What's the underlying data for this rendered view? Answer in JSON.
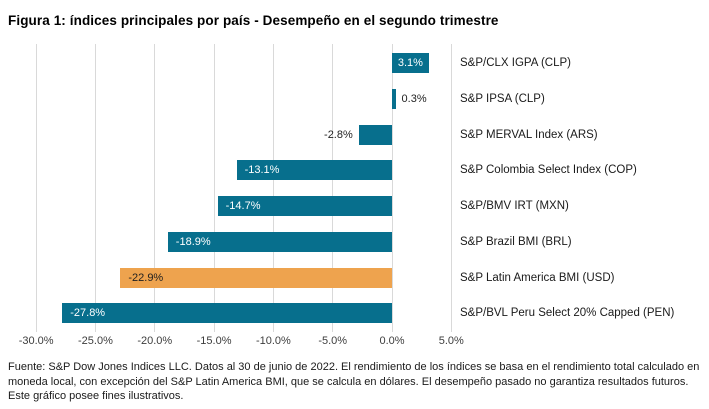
{
  "title": "Figura 1: índices principales por país - Desempeño en el segundo trimestre",
  "chart_data": {
    "type": "bar",
    "orientation": "horizontal",
    "title": "Figura 1: índices principales por país - Desempeño en el segundo trimestre",
    "categories": [
      "S&P/CLX IGPA (CLP)",
      "S&P IPSA (CLP)",
      "S&P MERVAL Index (ARS)",
      "S&P Colombia Select Index (COP)",
      "S&P/BMV IRT (MXN)",
      "S&P Brazil BMI (BRL)",
      "S&P Latin America BMI (USD)",
      "S&P/BVL Peru Select 20% Capped (PEN)"
    ],
    "values": [
      3.1,
      0.3,
      -2.8,
      -13.1,
      -14.7,
      -18.9,
      -22.9,
      -27.8
    ],
    "value_labels": [
      "3.1%",
      "0.3%",
      "-2.8%",
      "-13.1%",
      "-14.7%",
      "-18.9%",
      "-22.9%",
      "-27.8%"
    ],
    "bar_colors": [
      "teal",
      "teal",
      "teal",
      "teal",
      "teal",
      "teal",
      "orange",
      "teal"
    ],
    "value_label_inside": [
      true,
      false,
      false,
      true,
      true,
      true,
      true,
      true
    ],
    "x_tick_labels": [
      "-30.0%",
      "-25.0%",
      "-20.0%",
      "-15.0%",
      "-10.0%",
      "-5.0%",
      "0.0%",
      "5.0%"
    ],
    "x_tick_values": [
      -30,
      -25,
      -20,
      -15,
      -10,
      -5,
      0,
      5
    ],
    "xlim": [
      -32.5,
      6.5
    ],
    "grid": true,
    "legend": "none",
    "xlabel": "",
    "ylabel": "",
    "colors": {
      "teal": "#076f8d",
      "orange": "#eea34e",
      "gridline": "#d9d9d9"
    }
  },
  "footer": "Fuente: S&P Dow Jones Indices LLC. Datos al 30 de junio de 2022. El rendimiento de los índices se basa en el rendimiento total calculado en moneda local, con excepción del S&P Latin America BMI, que se calcula en dólares. El desempeño pasado no garantiza resultados futuros. Este gráfico posee fines ilustrativos."
}
